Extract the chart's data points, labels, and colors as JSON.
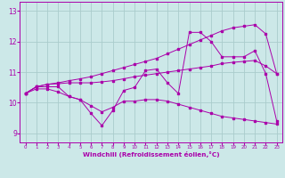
{
  "xlabel": "Windchill (Refroidissement éolien,°C)",
  "xlim": [
    -0.5,
    23.5
  ],
  "ylim": [
    8.7,
    13.3
  ],
  "yticks": [
    9,
    10,
    11,
    12,
    13
  ],
  "xticks": [
    0,
    1,
    2,
    3,
    4,
    5,
    6,
    7,
    8,
    9,
    10,
    11,
    12,
    13,
    14,
    15,
    16,
    17,
    18,
    19,
    20,
    21,
    22,
    23
  ],
  "background_color": "#cce8e8",
  "grid_color": "#aacccc",
  "line_color": "#aa00aa",
  "series": {
    "smooth_upper": [
      10.3,
      10.52,
      10.6,
      10.65,
      10.72,
      10.78,
      10.85,
      10.95,
      11.05,
      11.15,
      11.25,
      11.35,
      11.45,
      11.6,
      11.75,
      11.9,
      12.05,
      12.2,
      12.35,
      12.45,
      12.5,
      12.55,
      12.25,
      10.95
    ],
    "smooth_lower": [
      10.3,
      10.52,
      10.6,
      10.62,
      10.65,
      10.65,
      10.65,
      10.68,
      10.72,
      10.78,
      10.85,
      10.9,
      10.95,
      11.0,
      11.05,
      11.1,
      11.15,
      11.2,
      11.28,
      11.32,
      11.35,
      11.38,
      11.2,
      10.95
    ],
    "volatile": [
      10.3,
      10.52,
      10.52,
      10.52,
      10.2,
      10.1,
      9.65,
      9.25,
      9.75,
      10.4,
      10.5,
      11.05,
      11.1,
      10.65,
      10.3,
      12.3,
      12.3,
      12.0,
      11.5,
      11.5,
      11.5,
      11.7,
      10.95,
      9.4
    ],
    "lower_decline": [
      10.3,
      10.45,
      10.45,
      10.35,
      10.2,
      10.1,
      9.9,
      9.7,
      9.85,
      10.05,
      10.05,
      10.1,
      10.1,
      10.05,
      9.95,
      9.85,
      9.75,
      9.65,
      9.55,
      9.5,
      9.45,
      9.4,
      9.35,
      9.3
    ]
  }
}
